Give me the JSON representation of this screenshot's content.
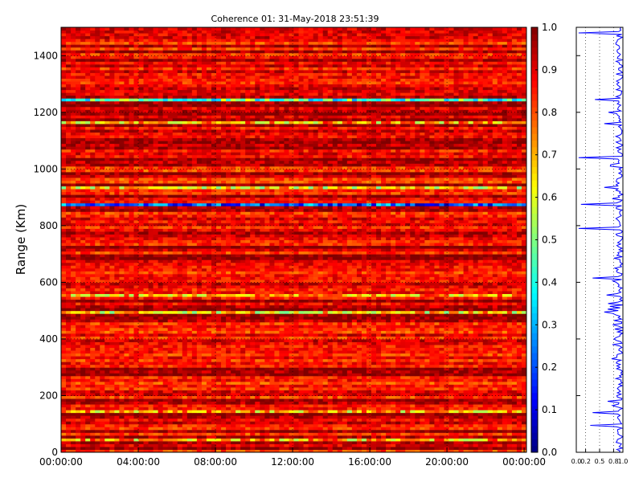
{
  "chart_data": [
    {
      "type": "heatmap",
      "title": "Coherence 01: 31-May-2018 23:51:39",
      "xlabel": "",
      "ylabel": "Range (Km)",
      "x_tick_labels": [
        "00:00:00",
        "04:00:00",
        "08:00:00",
        "12:00:00",
        "16:00:00",
        "20:00:00",
        "00:00:00"
      ],
      "y_ticks": [
        0,
        200,
        400,
        600,
        800,
        1000,
        1200,
        1400
      ],
      "ylim": [
        0,
        1500
      ],
      "colorbar": {
        "colormap": "jet",
        "range": [
          0.0,
          1.0
        ],
        "ticks": [
          "0.0",
          "0.1",
          "0.2",
          "0.3",
          "0.4",
          "0.5",
          "0.6",
          "0.7",
          "0.8",
          "0.9",
          "1.0"
        ]
      },
      "grid": true,
      "low_coherence_bands_km": [
        {
          "range": 875,
          "coherence": 0.2
        },
        {
          "range": 1245,
          "coherence": 0.45
        },
        {
          "range": 1160,
          "coherence": 0.7
        },
        {
          "range": 935,
          "coherence": 0.65
        },
        {
          "range": 495,
          "coherence": 0.65
        },
        {
          "range": 555,
          "coherence": 0.7
        },
        {
          "range": 140,
          "coherence": 0.7
        },
        {
          "range": 40,
          "coherence": 0.7
        }
      ],
      "typical_coherence_range": [
        0.8,
        1.0
      ]
    },
    {
      "type": "line",
      "title": "",
      "xlabel": "",
      "ylabel": "",
      "x_tick_labels": [
        "0.0",
        "0.2",
        "0.5",
        "0.8",
        "1.0"
      ],
      "xlim": [
        0,
        1
      ],
      "ylim": [
        0,
        1500
      ],
      "grid": true,
      "series": [
        {
          "color": "#0000ff",
          "dips": [
            {
              "range": 875,
              "value": 0.1
            },
            {
              "range": 790,
              "value": 0.05
            },
            {
              "range": 1040,
              "value": 0.05
            },
            {
              "range": 1480,
              "value": 0.05
            },
            {
              "range": 1245,
              "value": 0.4
            },
            {
              "range": 615,
              "value": 0.35
            },
            {
              "range": 140,
              "value": 0.35
            },
            {
              "range": 95,
              "value": 0.3
            },
            {
              "range": 1160,
              "value": 0.6
            },
            {
              "range": 935,
              "value": 0.6
            },
            {
              "range": 495,
              "value": 0.6
            },
            {
              "range": 555,
              "value": 0.65
            }
          ],
          "baseline_range": [
            0.85,
            1.0
          ]
        }
      ]
    }
  ]
}
